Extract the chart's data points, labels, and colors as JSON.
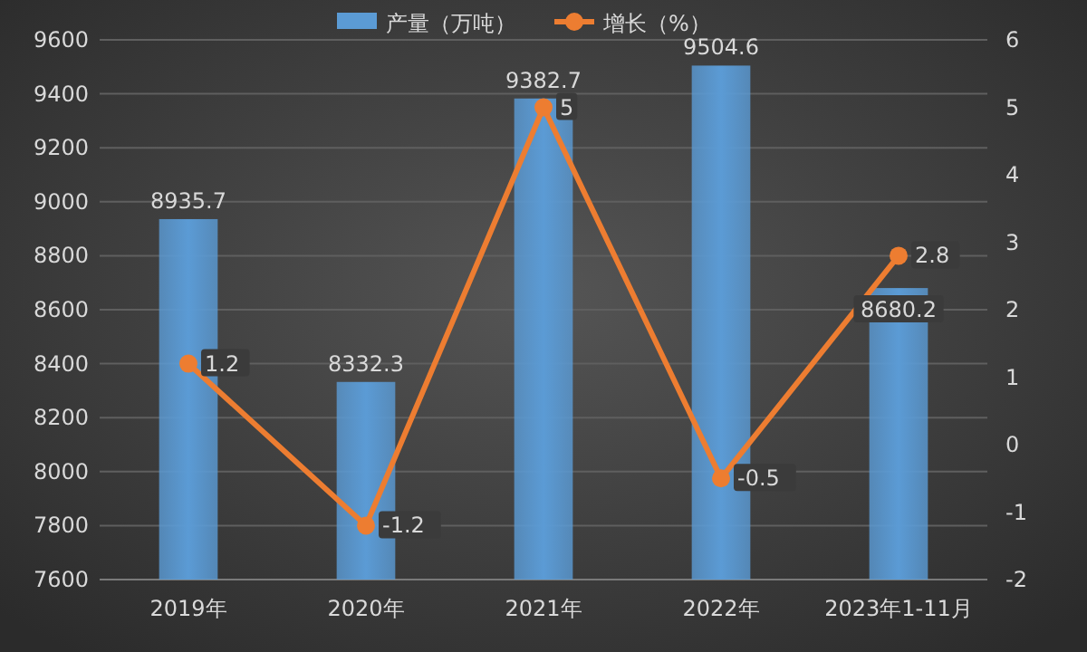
{
  "chart_data": {
    "type": "bar",
    "categories": [
      "2019年",
      "2020年",
      "2021年",
      "2022年",
      "2023年1-11月"
    ],
    "series": [
      {
        "name": "产量（万吨）",
        "color": "#5b9bd5",
        "values": [
          8935.7,
          8332.3,
          9382.7,
          9504.6,
          8680.2
        ]
      },
      {
        "name": "增长（%）",
        "type": "line",
        "axis": "y2",
        "color": "#ed7d31",
        "marker": "circle",
        "values": [
          1.2,
          -1.2,
          5,
          -0.5,
          2.8
        ]
      }
    ],
    "ylim": [
      7600,
      9600
    ],
    "yticks": [
      7600,
      7800,
      8000,
      8200,
      8400,
      8600,
      8800,
      9000,
      9200,
      9400,
      9600
    ],
    "y2lim": [
      -2,
      6
    ],
    "y2ticks": [
      -2,
      -1,
      0,
      1,
      2,
      3,
      4,
      5,
      6
    ],
    "grid": "y",
    "legend": "top",
    "data_labels": true
  }
}
